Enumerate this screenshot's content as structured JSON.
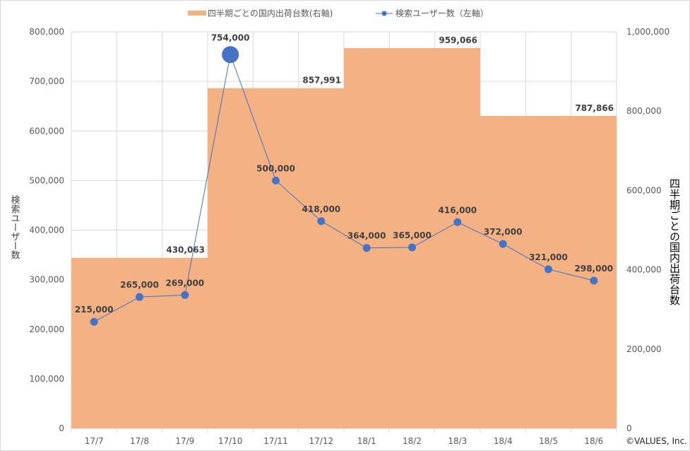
{
  "chart_data": {
    "type": "bar+line",
    "categories": [
      "17/7",
      "17/8",
      "17/9",
      "17/10",
      "17/11",
      "17/12",
      "18/1",
      "18/2",
      "18/3",
      "18/4",
      "18/5",
      "18/6"
    ],
    "series": [
      {
        "name": "四半期ごとの国内出荷台数(右軸)",
        "type": "bar",
        "axis": "right",
        "color": "#F4B183",
        "quarters": [
          {
            "months": [
              "17/7",
              "17/8",
              "17/9"
            ],
            "value": 430063,
            "label": "430,063"
          },
          {
            "months": [
              "17/10",
              "17/11",
              "17/12"
            ],
            "value": 857991,
            "label": "857,991"
          },
          {
            "months": [
              "18/1",
              "18/2",
              "18/3"
            ],
            "value": 959066,
            "label": "959,066"
          },
          {
            "months": [
              "18/4",
              "18/5",
              "18/6"
            ],
            "value": 787866,
            "label": "787,866"
          }
        ]
      },
      {
        "name": "検索ユーザー数（左軸）",
        "type": "line",
        "axis": "left",
        "color": "#4472C4",
        "values": [
          215000,
          265000,
          269000,
          754000,
          500000,
          418000,
          364000,
          365000,
          416000,
          372000,
          321000,
          298000
        ],
        "labels": [
          "215,000",
          "265,000",
          "269,000",
          "754,000",
          "500,000",
          "418,000",
          "364,000",
          "365,000",
          "416,000",
          "372,000",
          "321,000",
          "298,000"
        ],
        "highlight_index": 3
      }
    ],
    "left_axis": {
      "label": "検索ユーザー数",
      "range": [
        0,
        800000
      ],
      "ticks": [
        "0",
        "100,000",
        "200,000",
        "300,000",
        "400,000",
        "500,000",
        "600,000",
        "700,000",
        "800,000"
      ]
    },
    "right_axis": {
      "label": "四半期ごとの国内出荷台数",
      "range": [
        0,
        1000000
      ],
      "ticks": [
        "0",
        "200,000",
        "400,000",
        "600,000",
        "800,000",
        "1,000,000"
      ]
    },
    "legend_position": "top",
    "grid": true
  },
  "copyright": "©VALUES, Inc."
}
